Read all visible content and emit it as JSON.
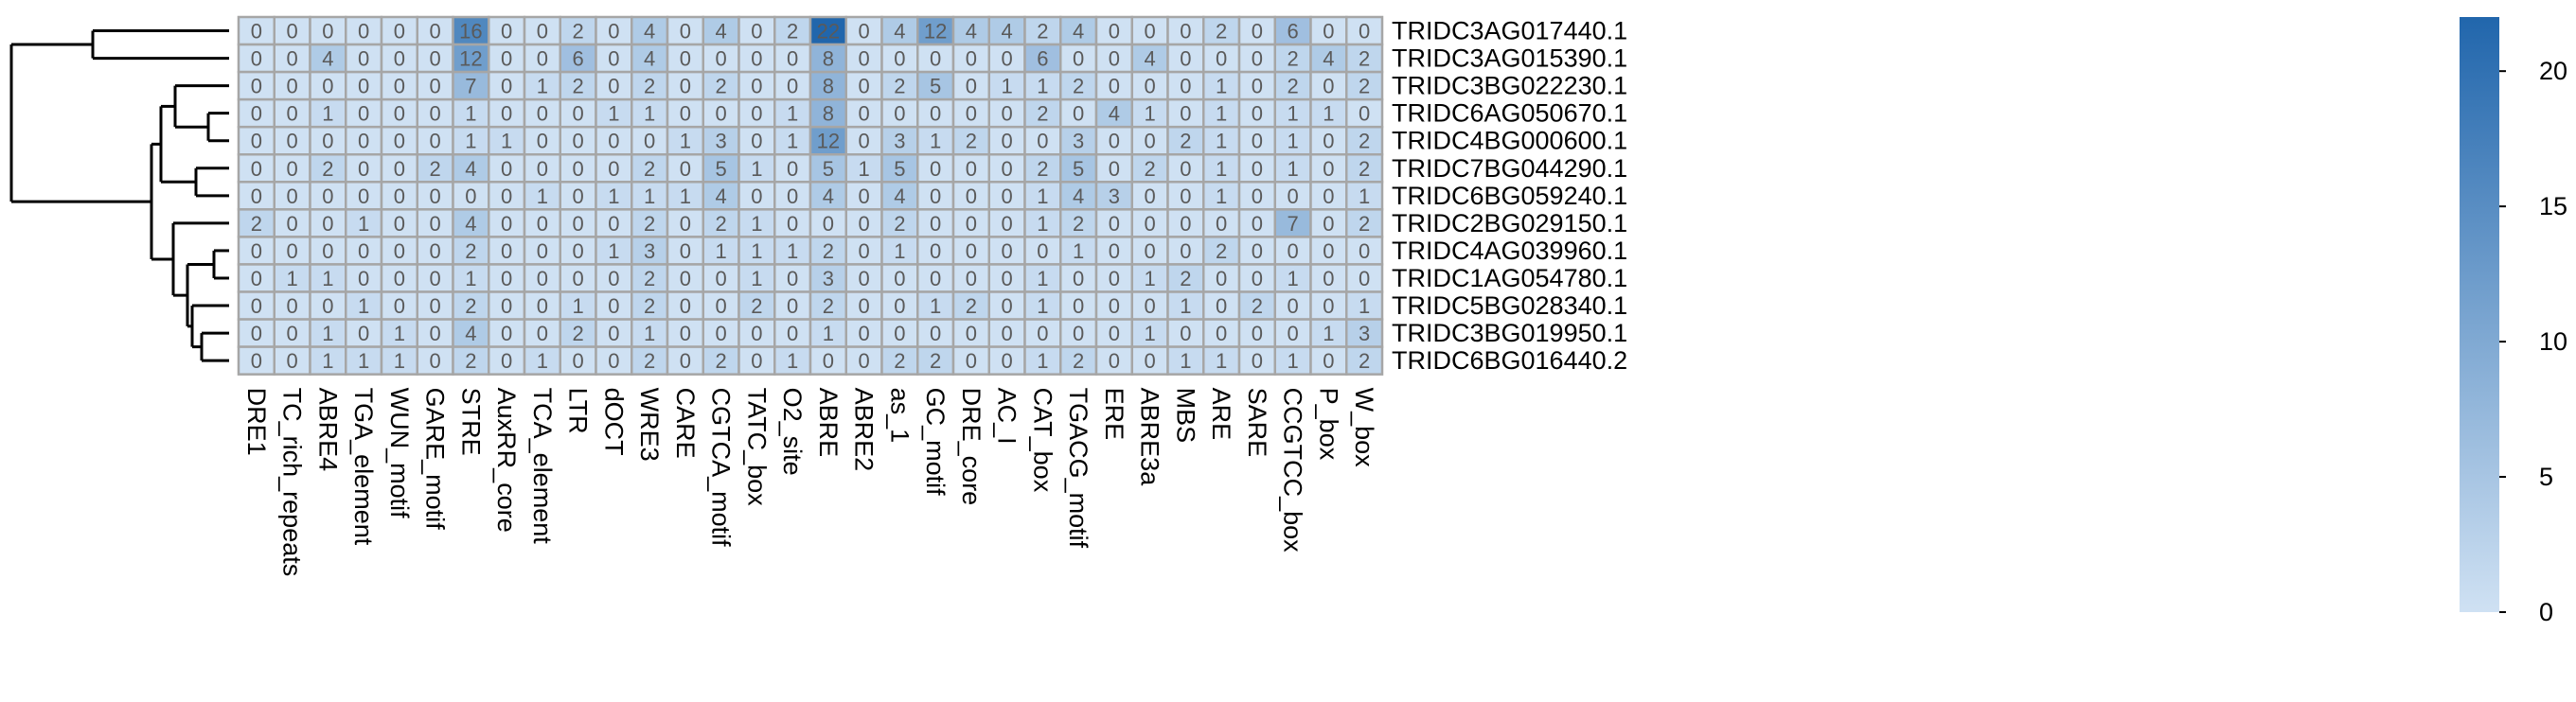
{
  "chart_data": {
    "type": "heatmap",
    "columns": [
      "DRE1",
      "TC_rich_repeats",
      "ABRE4",
      "TGA_element",
      "WUN_motif",
      "GARE_motif",
      "STRE",
      "AuxRR_core",
      "TCA_element",
      "LTR",
      "dOCT",
      "WRE3",
      "CARE",
      "CGTCA_motif",
      "TATC_box",
      "O2_site",
      "ABRE",
      "ABRE2",
      "as_1",
      "GC_motif",
      "DRE_core",
      "AC_I",
      "CAT_box",
      "TGACG_motif",
      "ERE",
      "ABRE3a",
      "MBS",
      "ARE",
      "SARE",
      "CCGTCC_box",
      "P_box",
      "W_box"
    ],
    "rows": [
      "TRIDC3AG017440.1",
      "TRIDC3AG015390.1",
      "TRIDC3BG022230.1",
      "TRIDC6AG050670.1",
      "TRIDC4BG000600.1",
      "TRIDC7BG044290.1",
      "TRIDC6BG059240.1",
      "TRIDC2BG029150.1",
      "TRIDC4AG039960.1",
      "TRIDC1AG054780.1",
      "TRIDC5BG028340.1",
      "TRIDC3BG019950.1",
      "TRIDC6BG016440.2"
    ],
    "values": [
      [
        0,
        0,
        0,
        0,
        0,
        0,
        16,
        0,
        0,
        2,
        0,
        4,
        0,
        4,
        0,
        2,
        22,
        0,
        4,
        12,
        4,
        4,
        2,
        4,
        0,
        0,
        0,
        2,
        0,
        6,
        0,
        0
      ],
      [
        0,
        0,
        4,
        0,
        0,
        0,
        12,
        0,
        0,
        6,
        0,
        4,
        0,
        0,
        0,
        0,
        8,
        0,
        0,
        0,
        0,
        0,
        6,
        0,
        0,
        4,
        0,
        0,
        0,
        2,
        4,
        2
      ],
      [
        0,
        0,
        0,
        0,
        0,
        0,
        7,
        0,
        1,
        2,
        0,
        2,
        0,
        2,
        0,
        0,
        8,
        0,
        2,
        5,
        0,
        1,
        1,
        2,
        0,
        0,
        0,
        1,
        0,
        2,
        0,
        2
      ],
      [
        0,
        0,
        1,
        0,
        0,
        0,
        1,
        0,
        0,
        0,
        1,
        1,
        0,
        0,
        0,
        1,
        8,
        0,
        0,
        0,
        0,
        0,
        2,
        0,
        4,
        1,
        0,
        1,
        0,
        1,
        1,
        0
      ],
      [
        0,
        0,
        0,
        0,
        0,
        0,
        1,
        1,
        0,
        0,
        0,
        0,
        1,
        3,
        0,
        1,
        12,
        0,
        3,
        1,
        2,
        0,
        0,
        3,
        0,
        0,
        2,
        1,
        0,
        1,
        0,
        2
      ],
      [
        0,
        0,
        2,
        0,
        0,
        2,
        4,
        0,
        0,
        0,
        0,
        2,
        0,
        5,
        1,
        0,
        5,
        1,
        5,
        0,
        0,
        0,
        2,
        5,
        0,
        2,
        0,
        1,
        0,
        1,
        0,
        2
      ],
      [
        0,
        0,
        0,
        0,
        0,
        0,
        0,
        0,
        1,
        0,
        1,
        1,
        1,
        4,
        0,
        0,
        4,
        0,
        4,
        0,
        0,
        0,
        1,
        4,
        3,
        0,
        0,
        1,
        0,
        0,
        0,
        1
      ],
      [
        2,
        0,
        0,
        1,
        0,
        0,
        4,
        0,
        0,
        0,
        0,
        2,
        0,
        2,
        1,
        0,
        0,
        0,
        2,
        0,
        0,
        0,
        1,
        2,
        0,
        0,
        0,
        0,
        0,
        7,
        0,
        2
      ],
      [
        0,
        0,
        0,
        0,
        0,
        0,
        2,
        0,
        0,
        0,
        1,
        3,
        0,
        1,
        1,
        1,
        2,
        0,
        1,
        0,
        0,
        0,
        0,
        1,
        0,
        0,
        0,
        2,
        0,
        0,
        0,
        0
      ],
      [
        0,
        1,
        1,
        0,
        0,
        0,
        1,
        0,
        0,
        0,
        0,
        2,
        0,
        0,
        1,
        0,
        3,
        0,
        0,
        0,
        0,
        0,
        1,
        0,
        0,
        1,
        2,
        0,
        0,
        1,
        0,
        0
      ],
      [
        0,
        0,
        0,
        1,
        0,
        0,
        2,
        0,
        0,
        1,
        0,
        2,
        0,
        0,
        2,
        0,
        2,
        0,
        0,
        1,
        2,
        0,
        1,
        0,
        0,
        0,
        1,
        0,
        2,
        0,
        0,
        1
      ],
      [
        0,
        0,
        1,
        0,
        1,
        0,
        4,
        0,
        0,
        2,
        0,
        1,
        0,
        0,
        0,
        0,
        1,
        0,
        0,
        0,
        0,
        0,
        0,
        0,
        0,
        1,
        0,
        0,
        0,
        0,
        1,
        3
      ],
      [
        0,
        0,
        1,
        1,
        1,
        0,
        2,
        0,
        1,
        0,
        0,
        2,
        0,
        2,
        0,
        1,
        0,
        0,
        2,
        2,
        0,
        0,
        1,
        2,
        0,
        0,
        1,
        1,
        0,
        1,
        0,
        2
      ]
    ],
    "color_scale": {
      "min": 0,
      "max": 22,
      "low_color": "#cfe1f3",
      "high_color": "#2166ac",
      "ticks": [
        0,
        5,
        10,
        15,
        20
      ]
    },
    "row_dendrogram": true,
    "grid": true,
    "legend_placement": "right"
  }
}
